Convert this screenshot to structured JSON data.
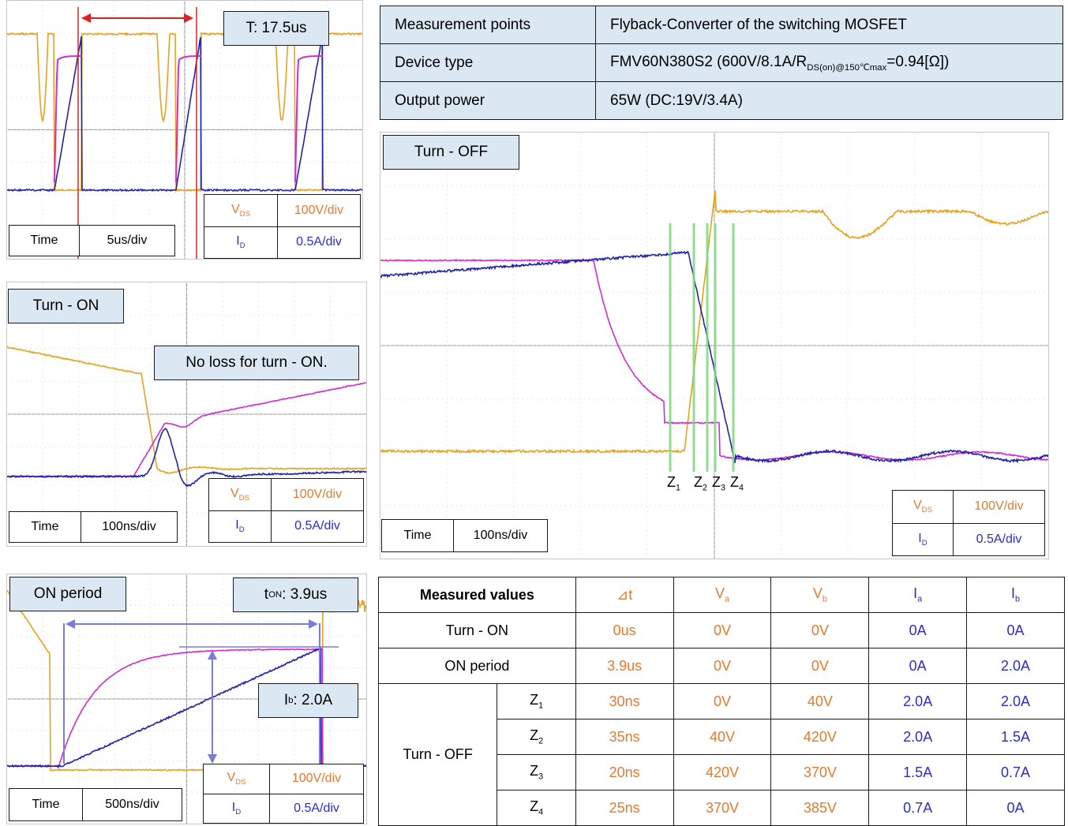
{
  "info_table": [
    {
      "label": "Measurement points",
      "value": "Flyback-Converter of the switching MOSFET"
    },
    {
      "label": "Device type",
      "value_main": "FMV60N380S2 (600V/8.1A/R",
      "value_sub": "DS(on)@150℃max",
      "value_tail": "=0.94[Ω])"
    },
    {
      "label": "Output power",
      "value": "65W (DC:19V/3.4A)"
    }
  ],
  "panels": {
    "period": {
      "label": "T: 17.5us",
      "time_label": "Time",
      "time_div": "5us/div",
      "vds_name": "V",
      "vds_sub": "DS",
      "vds_div": "100V/div",
      "id_name": "I",
      "id_sub": "D",
      "id_div": "0.5A/div"
    },
    "turn_on": {
      "title": "Turn - ON",
      "note": "No loss for turn - ON.",
      "time_label": "Time",
      "time_div": "100ns/div",
      "vds_name": "V",
      "vds_sub": "DS",
      "vds_div": "100V/div",
      "id_name": "I",
      "id_sub": "D",
      "id_div": "0.5A/div"
    },
    "on_period": {
      "title": "ON period",
      "ton_name": "t",
      "ton_sub": "ON",
      "ton_value": ": 3.9us",
      "ib_name": "I",
      "ib_sub": "b",
      "ib_value": ": 2.0A",
      "time_label": "Time",
      "time_div": "500ns/div",
      "vds_name": "V",
      "vds_sub": "DS",
      "vds_div": "100V/div",
      "id_name": "I",
      "id_sub": "D",
      "id_div": "0.5A/div"
    },
    "turn_off": {
      "title": "Turn - OFF",
      "time_label": "Time",
      "time_div": "100ns/div",
      "vds_name": "V",
      "vds_sub": "DS",
      "vds_div": "100V/div",
      "id_name": "I",
      "id_sub": "D",
      "id_div": "0.5A/div",
      "markers": [
        {
          "name": "Z",
          "sub": "1"
        },
        {
          "name": "Z",
          "sub": "2"
        },
        {
          "name": "Z",
          "sub": "3"
        },
        {
          "name": "Z",
          "sub": "4"
        }
      ]
    }
  },
  "colors": {
    "vds": "#e8a21e",
    "id": "#2222aa",
    "gate": "#d42ad4",
    "label_bg": "#dbe7f3",
    "vds_text": "#e8792b",
    "id_text": "#2b2bd6"
  },
  "measured": {
    "header": {
      "title": "Measured values",
      "dt": "⊿t",
      "va": "V",
      "va_sub": "a",
      "vb": "V",
      "vb_sub": "b",
      "ia": "I",
      "ia_sub": "a",
      "ib": "I",
      "ib_sub": "b"
    },
    "turn_on": {
      "label": "Turn - ON",
      "dt": "0us",
      "va": "0V",
      "vb": "0V",
      "ia": "0A",
      "ib": "0A"
    },
    "on_period": {
      "label": "ON period",
      "dt": "3.9us",
      "va": "0V",
      "vb": "0V",
      "ia": "0A",
      "ib": "2.0A"
    },
    "turn_off": {
      "label": "Turn - OFF",
      "rows": [
        {
          "z": "Z",
          "z_sub": "1",
          "dt": "30ns",
          "va": "0V",
          "vb": "40V",
          "ia": "2.0A",
          "ib": "2.0A"
        },
        {
          "z": "Z",
          "z_sub": "2",
          "dt": "35ns",
          "va": "40V",
          "vb": "420V",
          "ia": "2.0A",
          "ib": "1.5A"
        },
        {
          "z": "Z",
          "z_sub": "3",
          "dt": "20ns",
          "va": "420V",
          "vb": "370V",
          "ia": "1.5A",
          "ib": "0.7A"
        },
        {
          "z": "Z",
          "z_sub": "4",
          "dt": "25ns",
          "va": "370V",
          "vb": "385V",
          "ia": "0.7A",
          "ib": "0A"
        }
      ]
    }
  },
  "chart_data": [
    {
      "type": "line",
      "title": "",
      "x_unit_per_div": "5us/div",
      "series": [
        {
          "name": "V",
          "scale": "100V/div"
        },
        {
          "name": "I",
          "scale": "0.5A/div"
        }
      ],
      "period_us": 17.5
    },
    {
      "type": "line",
      "title": "Turn - ON",
      "x_unit_per_div": "100ns/div",
      "series": [
        {
          "name": "V",
          "scale": "100V/div"
        },
        {
          "name": "I",
          "scale": "0.5A/div"
        }
      ]
    },
    {
      "type": "line",
      "title": "ON period",
      "x_unit_per_div": "500ns/div",
      "series": [
        {
          "name": "V",
          "scale": "100V/div"
        },
        {
          "name": "I",
          "scale": "0.5A/div"
        }
      ],
      "t_on_us": 3.9,
      "i_b_A": 2.0
    },
    {
      "type": "line",
      "title": "Turn - OFF",
      "x_unit_per_div": "100ns/div",
      "series": [
        {
          "name": "V",
          "scale": "100V/div"
        },
        {
          "name": "I",
          "scale": "0.5A/div"
        }
      ],
      "z_intervals_ns": [
        30,
        35,
        20,
        25
      ]
    }
  ]
}
